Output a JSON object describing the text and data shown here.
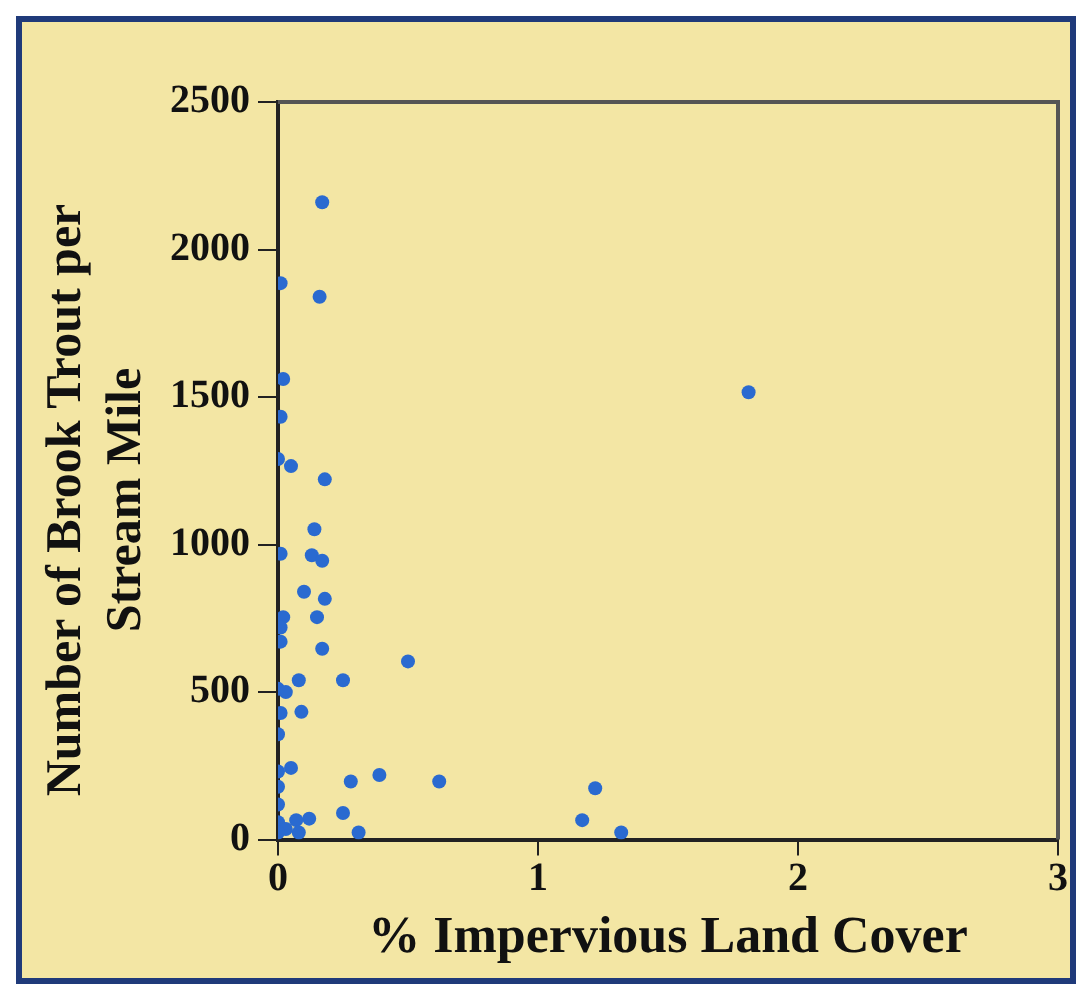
{
  "chart_data": {
    "type": "scatter",
    "xlabel": "% Impervious Land Cover",
    "ylabel": "Number of Brook Trout per Stream Mile",
    "xlim": [
      0,
      3
    ],
    "xticks": [
      0,
      1,
      2,
      3
    ],
    "ylim": [
      0,
      2500
    ],
    "yticks": [
      0,
      500,
      1000,
      1500,
      2000,
      2500
    ],
    "grid": false,
    "legend": false,
    "marker": "circle",
    "series": [
      {
        "color": "#2a6ad0",
        "x": [
          0.17,
          0.01,
          0.16,
          0.02,
          0.01,
          0,
          0.05,
          0.18,
          0.14,
          0.01,
          0.13,
          0.17,
          0.1,
          0.18,
          0.02,
          0.15,
          0.01,
          0.01,
          0.17,
          0.5,
          0.08,
          0.25,
          0,
          0.03,
          0.09,
          0.01,
          0,
          0.05,
          0,
          0.39,
          0.28,
          0.62,
          0,
          0,
          0.25,
          0.12,
          0.07,
          0,
          0.03,
          0.31,
          0,
          0.08,
          1.81,
          1.22,
          1.17,
          1.32
        ],
        "values": [
          2160,
          1886,
          1840,
          1561,
          1433,
          1290,
          1266,
          1221,
          1052,
          969,
          964,
          945,
          840,
          816,
          754,
          754,
          719,
          671,
          647,
          604,
          540,
          540,
          511,
          500,
          433,
          429,
          357,
          243,
          231,
          219,
          197,
          197,
          179,
          119,
          90,
          71,
          66,
          59,
          36,
          24,
          24,
          24,
          1516,
          174,
          66,
          24
        ]
      }
    ]
  }
}
